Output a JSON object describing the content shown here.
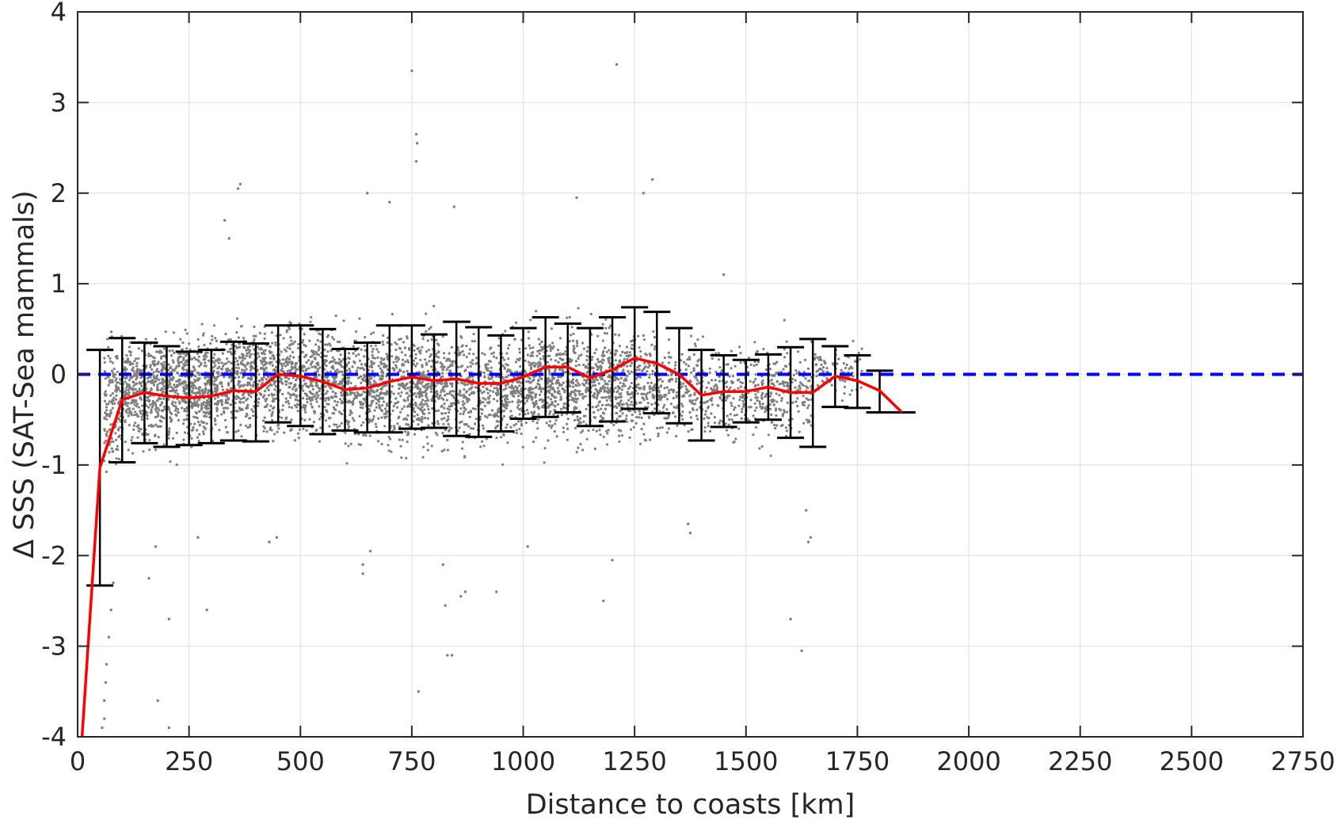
{
  "chart_data": {
    "type": "scatter",
    "xlabel": "Distance to coasts [km]",
    "ylabel": "Δ SSS (SAT-Sea mammals)",
    "xlim": [
      0,
      2750
    ],
    "ylim": [
      -4,
      4
    ],
    "xticks": [
      0,
      250,
      500,
      750,
      1000,
      1250,
      1500,
      1750,
      2000,
      2250,
      2500,
      2750
    ],
    "yticks": [
      -4,
      -3,
      -2,
      -1,
      0,
      1,
      2,
      3,
      4
    ],
    "grid": true,
    "colors": {
      "scatter": "#7f7f7f",
      "mean_line": "#ff0000",
      "zero_line": "#0000ff",
      "error_bars": "#000000"
    },
    "zero_line": {
      "y": 0,
      "style": "dashed"
    },
    "mean_line": {
      "x": [
        10,
        50,
        100,
        150,
        200,
        250,
        300,
        350,
        400,
        450,
        500,
        550,
        600,
        650,
        700,
        750,
        800,
        850,
        900,
        950,
        1000,
        1050,
        1100,
        1150,
        1200,
        1250,
        1300,
        1350,
        1400,
        1450,
        1500,
        1550,
        1600,
        1650,
        1700,
        1750,
        1800,
        1850
      ],
      "y": [
        -4.0,
        -1.03,
        -0.28,
        -0.2,
        -0.24,
        -0.26,
        -0.24,
        -0.18,
        -0.19,
        0.0,
        -0.02,
        -0.08,
        -0.17,
        -0.15,
        -0.08,
        -0.03,
        -0.07,
        -0.05,
        -0.1,
        -0.1,
        -0.03,
        0.08,
        0.08,
        -0.04,
        0.05,
        0.18,
        0.12,
        0.0,
        -0.23,
        -0.19,
        -0.19,
        -0.14,
        -0.2,
        -0.2,
        -0.02,
        -0.07,
        -0.18,
        -0.42
      ]
    },
    "error_bars": {
      "x": [
        50,
        100,
        150,
        200,
        250,
        300,
        350,
        400,
        450,
        500,
        550,
        600,
        650,
        700,
        750,
        800,
        850,
        900,
        950,
        1000,
        1050,
        1100,
        1150,
        1200,
        1250,
        1300,
        1350,
        1400,
        1450,
        1500,
        1550,
        1600,
        1650,
        1700,
        1750,
        1800,
        1850
      ],
      "lower": [
        -2.33,
        -0.97,
        -0.76,
        -0.8,
        -0.78,
        -0.76,
        -0.73,
        -0.74,
        -0.53,
        -0.57,
        -0.66,
        -0.62,
        -0.64,
        -0.64,
        -0.6,
        -0.59,
        -0.68,
        -0.69,
        -0.63,
        -0.49,
        -0.47,
        -0.42,
        -0.57,
        -0.52,
        -0.38,
        -0.43,
        -0.54,
        -0.73,
        -0.58,
        -0.53,
        -0.5,
        -0.7,
        -0.8,
        -0.36,
        -0.37,
        -0.42,
        -0.42
      ],
      "upper": [
        0.27,
        0.4,
        0.35,
        0.31,
        0.25,
        0.27,
        0.36,
        0.34,
        0.54,
        0.54,
        0.5,
        0.28,
        0.35,
        0.54,
        0.54,
        0.44,
        0.58,
        0.52,
        0.43,
        0.51,
        0.63,
        0.56,
        0.51,
        0.63,
        0.74,
        0.69,
        0.51,
        0.27,
        0.21,
        0.16,
        0.22,
        0.3,
        0.39,
        0.31,
        0.21,
        0.04,
        -0.42
      ]
    },
    "scatter": {
      "description_bins": [
        {
          "x0": 60,
          "x1": 100,
          "y_min": -2.0,
          "y_max": 1.3,
          "n": 160
        },
        {
          "x0": 100,
          "x1": 300,
          "y_min": -1.4,
          "y_max": 1.1,
          "n": 900
        },
        {
          "x0": 300,
          "x1": 600,
          "y_min": -1.3,
          "y_max": 1.2,
          "n": 1100
        },
        {
          "x0": 600,
          "x1": 1000,
          "y_min": -1.5,
          "y_max": 1.2,
          "n": 1300
        },
        {
          "x0": 1000,
          "x1": 1300,
          "y_min": -1.4,
          "y_max": 1.2,
          "n": 1000
        },
        {
          "x0": 1300,
          "x1": 1650,
          "y_min": -1.3,
          "y_max": 0.9,
          "n": 600
        },
        {
          "x0": 1650,
          "x1": 1760,
          "y_min": -0.6,
          "y_max": 0.7,
          "n": 90
        }
      ],
      "outliers": [
        {
          "x": 60,
          "y": -3.8
        },
        {
          "x": 55,
          "y": -3.9
        },
        {
          "x": 60,
          "y": -3.6
        },
        {
          "x": 65,
          "y": -3.2
        },
        {
          "x": 70,
          "y": -2.9
        },
        {
          "x": 75,
          "y": -2.6
        },
        {
          "x": 63,
          "y": -3.4
        },
        {
          "x": 80,
          "y": -2.3
        },
        {
          "x": 205,
          "y": -3.9
        },
        {
          "x": 180,
          "y": -3.6
        },
        {
          "x": 205,
          "y": -2.7
        },
        {
          "x": 290,
          "y": -2.6
        },
        {
          "x": 160,
          "y": -2.25
        },
        {
          "x": 175,
          "y": -1.9
        },
        {
          "x": 270,
          "y": -1.8
        },
        {
          "x": 365,
          "y": 2.1
        },
        {
          "x": 360,
          "y": 2.05
        },
        {
          "x": 330,
          "y": 1.7
        },
        {
          "x": 340,
          "y": 1.5
        },
        {
          "x": 430,
          "y": -1.85
        },
        {
          "x": 447,
          "y": -1.8
        },
        {
          "x": 640,
          "y": -2.2
        },
        {
          "x": 640,
          "y": -2.1
        },
        {
          "x": 657,
          "y": -1.95
        },
        {
          "x": 650,
          "y": 2.0
        },
        {
          "x": 700,
          "y": 1.9
        },
        {
          "x": 750,
          "y": 3.35
        },
        {
          "x": 760,
          "y": 2.65
        },
        {
          "x": 762,
          "y": 2.55
        },
        {
          "x": 760,
          "y": 2.35
        },
        {
          "x": 765,
          "y": -3.5
        },
        {
          "x": 820,
          "y": -2.1
        },
        {
          "x": 825,
          "y": -2.55
        },
        {
          "x": 830,
          "y": -3.1
        },
        {
          "x": 840,
          "y": -3.1
        },
        {
          "x": 860,
          "y": -2.45
        },
        {
          "x": 870,
          "y": -2.4
        },
        {
          "x": 940,
          "y": -2.4
        },
        {
          "x": 845,
          "y": 1.85
        },
        {
          "x": 1010,
          "y": -1.9
        },
        {
          "x": 1120,
          "y": 1.95
        },
        {
          "x": 1200,
          "y": -2.05
        },
        {
          "x": 1180,
          "y": -2.5
        },
        {
          "x": 1210,
          "y": 3.42
        },
        {
          "x": 1270,
          "y": 2.0
        },
        {
          "x": 1290,
          "y": 2.15
        },
        {
          "x": 1370,
          "y": -1.65
        },
        {
          "x": 1375,
          "y": -1.75
        },
        {
          "x": 1450,
          "y": 1.1
        },
        {
          "x": 1600,
          "y": -2.7
        },
        {
          "x": 1625,
          "y": -3.05
        },
        {
          "x": 1640,
          "y": -1.85
        },
        {
          "x": 1645,
          "y": -1.8
        },
        {
          "x": 1635,
          "y": -1.5
        }
      ]
    }
  }
}
